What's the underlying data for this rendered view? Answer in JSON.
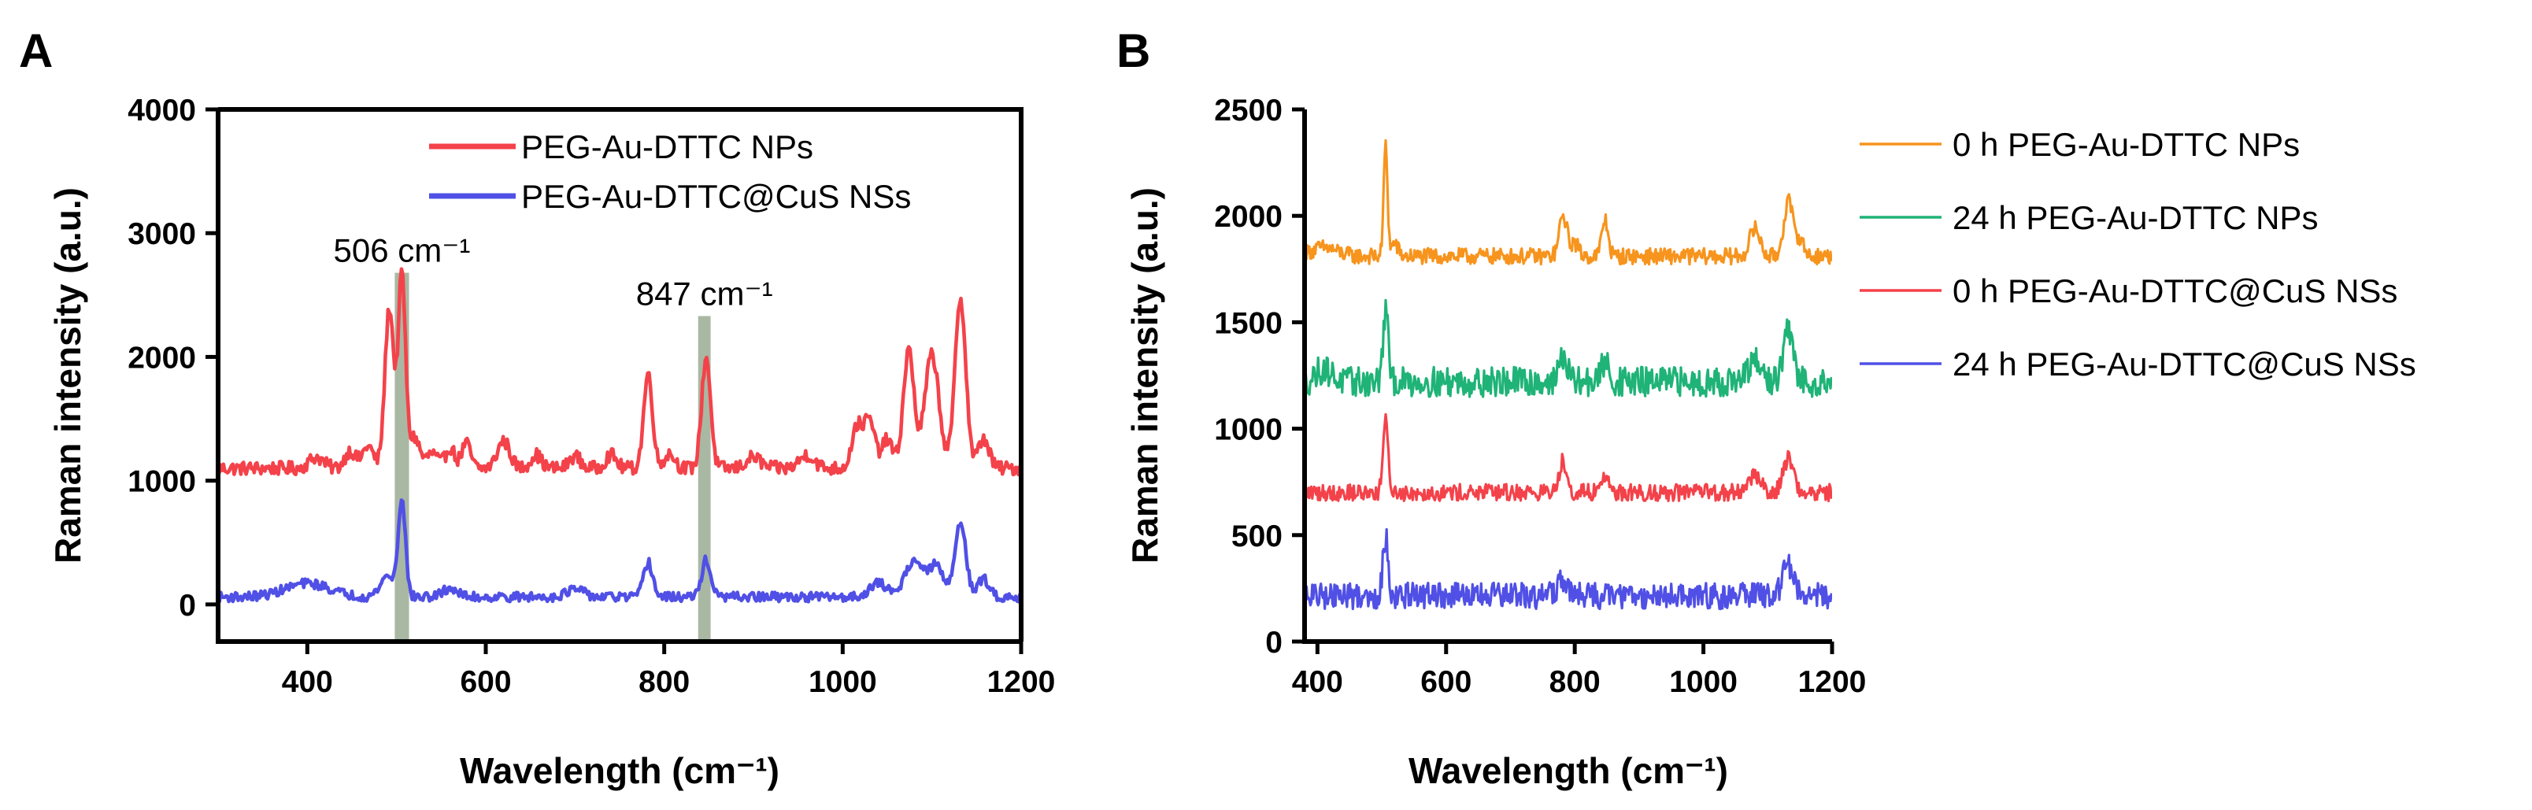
{
  "chart_data": [
    {
      "panel": "A",
      "type": "line",
      "xlabel": "Wavelength (cm⁻¹)",
      "ylabel": "Raman intensity (a.u.)",
      "xlim": [
        300,
        1200
      ],
      "ylim": [
        -300,
        4000
      ],
      "xticks": [
        400,
        600,
        800,
        1000,
        1200
      ],
      "yticks": [
        0,
        1000,
        2000,
        3000,
        4000
      ],
      "legend_position": "top-right",
      "highlight_bands": [
        {
          "label": "506 cm⁻¹",
          "x": 506,
          "width": 16,
          "ymax": 2680,
          "color": "#a9b8a3"
        },
        {
          "label": "847 cm⁻¹",
          "x": 845,
          "width": 14,
          "ymax": 2330,
          "color": "#a9b8a3"
        }
      ],
      "series": [
        {
          "name": "PEG-Au-DTTC NPs",
          "color": "#f4424a",
          "baseline": 1100,
          "noise": 55,
          "peaks": [
            [
              410,
              90,
              8
            ],
            [
              448,
              140,
              6
            ],
            [
              468,
              180,
              6
            ],
            [
              492,
              1300,
              5
            ],
            [
              506,
              1550,
              4
            ],
            [
              520,
              250,
              6
            ],
            [
              540,
              120,
              6
            ],
            [
              560,
              170,
              5
            ],
            [
              578,
              200,
              5
            ],
            [
              620,
              220,
              7
            ],
            [
              656,
              110,
              6
            ],
            [
              700,
              100,
              6
            ],
            [
              740,
              110,
              6
            ],
            [
              782,
              760,
              5
            ],
            [
              806,
              120,
              6
            ],
            [
              847,
              900,
              5
            ],
            [
              900,
              90,
              8
            ],
            [
              960,
              110,
              8
            ],
            [
              1016,
              330,
              6
            ],
            [
              1030,
              380,
              6
            ],
            [
              1050,
              230,
              6
            ],
            [
              1074,
              950,
              6
            ],
            [
              1100,
              920,
              8
            ],
            [
              1132,
              1380,
              6
            ],
            [
              1158,
              240,
              6
            ]
          ]
        },
        {
          "name": "PEG-Au-DTTC@CuS NSs",
          "color": "#5050e6",
          "baseline": 60,
          "noise": 38,
          "peaks": [
            [
              400,
              110,
              25
            ],
            [
              490,
              170,
              8
            ],
            [
              506,
              780,
              4
            ],
            [
              560,
              70,
              8
            ],
            [
              700,
              60,
              10
            ],
            [
              782,
              280,
              5
            ],
            [
              847,
              300,
              5
            ],
            [
              1040,
              110,
              10
            ],
            [
              1080,
              300,
              10
            ],
            [
              1105,
              250,
              8
            ],
            [
              1132,
              620,
              6
            ],
            [
              1158,
              150,
              6
            ]
          ]
        }
      ]
    },
    {
      "panel": "B",
      "type": "line",
      "xlabel": "Wavelength (cm⁻¹)",
      "ylabel": "Raman intensity (a.u.)",
      "xlim": [
        380,
        1200
      ],
      "ylim": [
        0,
        2500
      ],
      "xticks": [
        400,
        600,
        800,
        1000,
        1200
      ],
      "yticks": [
        0,
        500,
        1000,
        1500,
        2000,
        2500
      ],
      "legend_position": "right",
      "series": [
        {
          "name": "0 h PEG-Au-DTTC NPs",
          "color": "#f7941d",
          "baseline": 1810,
          "noise": 38,
          "peaks": [
            [
              410,
              40,
              20
            ],
            [
              506,
              520,
              3
            ],
            [
              520,
              60,
              5
            ],
            [
              782,
              190,
              6
            ],
            [
              800,
              60,
              6
            ],
            [
              847,
              170,
              5
            ],
            [
              1080,
              130,
              8
            ],
            [
              1132,
              260,
              7
            ],
            [
              1150,
              80,
              6
            ]
          ]
        },
        {
          "name": "24 h PEG-Au-DTTC NPs",
          "color": "#1fb377",
          "baseline": 1220,
          "noise": 70,
          "peaks": [
            [
              410,
              60,
              12
            ],
            [
              506,
              330,
              4
            ],
            [
              782,
              120,
              6
            ],
            [
              847,
              90,
              6
            ],
            [
              1080,
              90,
              10
            ],
            [
              1132,
              230,
              8
            ]
          ]
        },
        {
          "name": "0 h PEG-Au-DTTC@CuS NSs",
          "color": "#f4424a",
          "baseline": 700,
          "noise": 40,
          "peaks": [
            [
              506,
              330,
              4
            ],
            [
              782,
              150,
              6
            ],
            [
              847,
              80,
              6
            ],
            [
              1080,
              80,
              10
            ],
            [
              1132,
              160,
              8
            ]
          ]
        },
        {
          "name": "24 h PEG-Au-DTTC@CuS NSs",
          "color": "#5050e6",
          "baseline": 215,
          "noise": 62,
          "peaks": [
            [
              506,
              280,
              4
            ],
            [
              782,
              70,
              8
            ],
            [
              1132,
              150,
              8
            ]
          ]
        }
      ]
    }
  ]
}
